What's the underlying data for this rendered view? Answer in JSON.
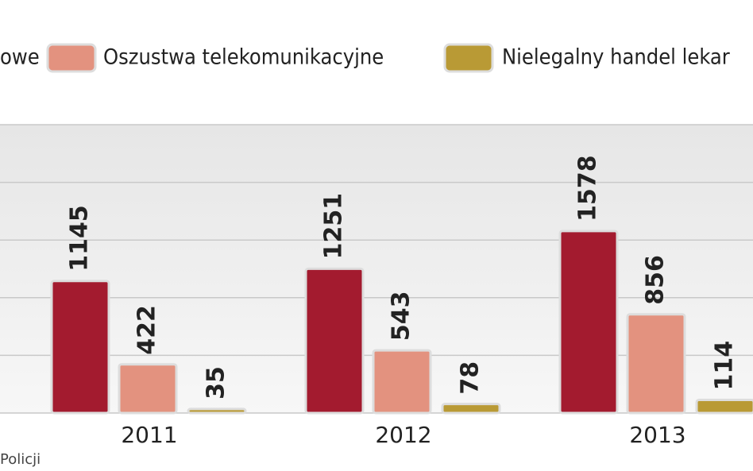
{
  "chart_data": {
    "type": "bar",
    "categories": [
      "2011",
      "2012",
      "2013"
    ],
    "series": [
      {
        "name": "owe",
        "color": "#a31b2f",
        "values": [
          1145,
          1251,
          1578
        ]
      },
      {
        "name": "Oszustwa telekomunikacyjne",
        "color": "#e3927f",
        "values": [
          422,
          543,
          856
        ]
      },
      {
        "name": "Nielegalny handel lekar",
        "color": "#b99a35",
        "values": [
          35,
          78,
          114
        ]
      }
    ],
    "ylim": [
      0,
      2500
    ],
    "yticks": [
      0,
      500,
      1000,
      1500,
      2000,
      2500
    ],
    "grid": true,
    "source": "Policji"
  }
}
